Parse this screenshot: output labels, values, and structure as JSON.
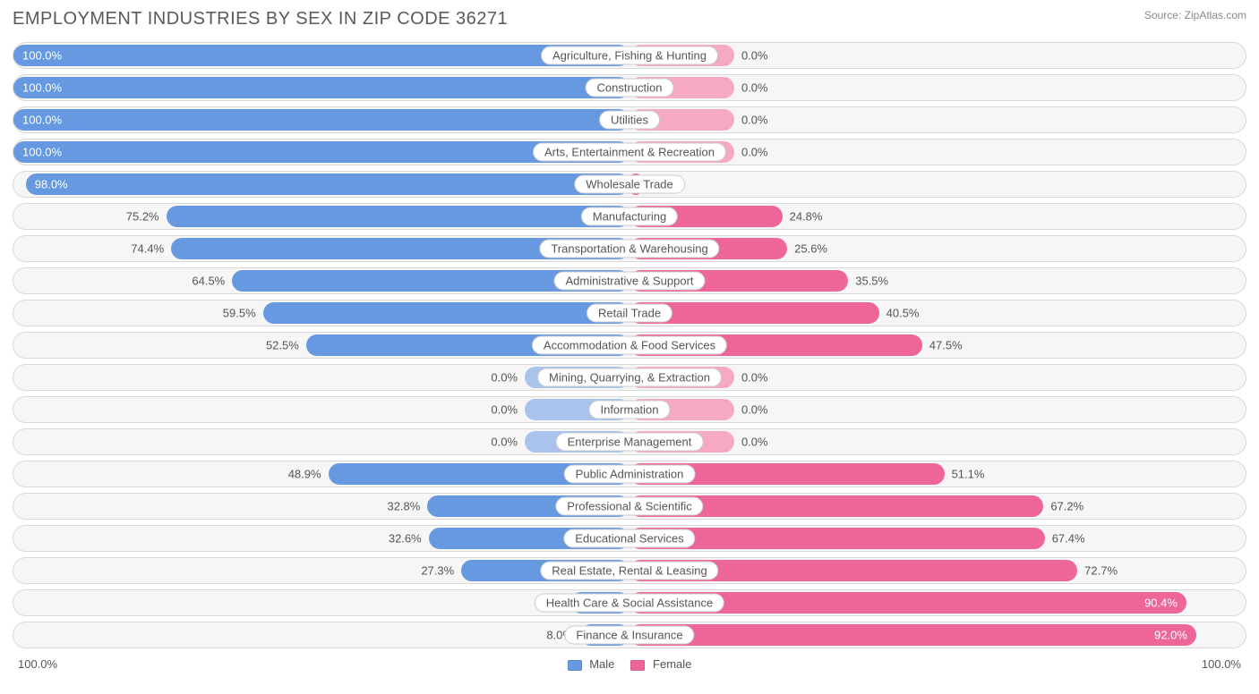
{
  "title": "EMPLOYMENT INDUSTRIES BY SEX IN ZIP CODE 36271",
  "source": "Source: ZipAtlas.com",
  "colors": {
    "male_fill": "#6699e0",
    "male_faded": "#a9c3ec",
    "female_fill": "#ee6699",
    "female_faded": "#f5a9c3",
    "row_bg": "#f6f6f6",
    "row_border": "#d9d9d9",
    "text": "#555555",
    "title_text": "#5a5a5a"
  },
  "chart": {
    "type": "diverging-bar",
    "axis_max_pct": 100.0,
    "default_bar_pct": 17.0,
    "rows": [
      {
        "label": "Agriculture, Fishing & Hunting",
        "male": 100.0,
        "female": 0.0
      },
      {
        "label": "Construction",
        "male": 100.0,
        "female": 0.0
      },
      {
        "label": "Utilities",
        "male": 100.0,
        "female": 0.0
      },
      {
        "label": "Arts, Entertainment & Recreation",
        "male": 100.0,
        "female": 0.0
      },
      {
        "label": "Wholesale Trade",
        "male": 98.0,
        "female": 2.0
      },
      {
        "label": "Manufacturing",
        "male": 75.2,
        "female": 24.8
      },
      {
        "label": "Transportation & Warehousing",
        "male": 74.4,
        "female": 25.6
      },
      {
        "label": "Administrative & Support",
        "male": 64.5,
        "female": 35.5
      },
      {
        "label": "Retail Trade",
        "male": 59.5,
        "female": 40.5
      },
      {
        "label": "Accommodation & Food Services",
        "male": 52.5,
        "female": 47.5
      },
      {
        "label": "Mining, Quarrying, & Extraction",
        "male": 0.0,
        "female": 0.0
      },
      {
        "label": "Information",
        "male": 0.0,
        "female": 0.0
      },
      {
        "label": "Enterprise Management",
        "male": 0.0,
        "female": 0.0
      },
      {
        "label": "Public Administration",
        "male": 48.9,
        "female": 51.1
      },
      {
        "label": "Professional & Scientific",
        "male": 32.8,
        "female": 67.2
      },
      {
        "label": "Educational Services",
        "male": 32.6,
        "female": 67.4
      },
      {
        "label": "Real Estate, Rental & Leasing",
        "male": 27.3,
        "female": 72.7
      },
      {
        "label": "Health Care & Social Assistance",
        "male": 9.6,
        "female": 90.4
      },
      {
        "label": "Finance & Insurance",
        "male": 8.0,
        "female": 92.0
      }
    ]
  },
  "legend": {
    "left_label": "100.0%",
    "right_label": "100.0%",
    "male_label": "Male",
    "female_label": "Female"
  }
}
